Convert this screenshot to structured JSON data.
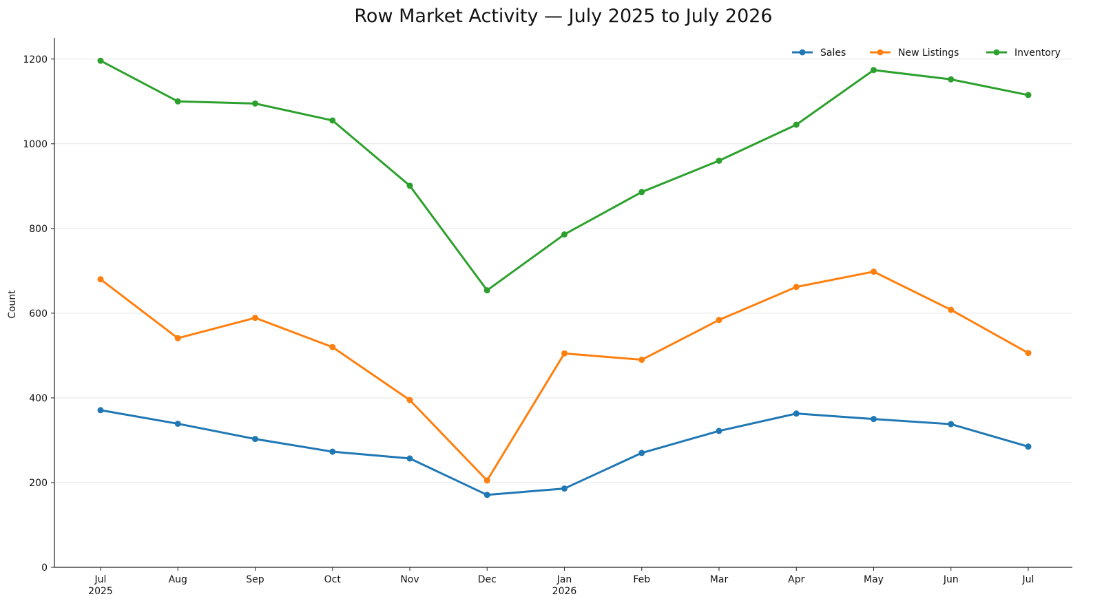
{
  "chart_data": {
    "type": "line",
    "title": "Row Market Activity — July 2025 to July 2026",
    "xlabel": "",
    "ylabel": "Count",
    "ylim": [
      0,
      1250
    ],
    "yticks": [
      0,
      200,
      400,
      600,
      800,
      1000,
      1200
    ],
    "grid": "horizontal",
    "legend_position": "top-right",
    "categories": [
      "Jul",
      "Aug",
      "Sep",
      "Oct",
      "Nov",
      "Dec",
      "Jan",
      "Feb",
      "Mar",
      "Apr",
      "May",
      "Jun",
      "Jul"
    ],
    "category_sublabels": [
      "2025",
      "",
      "",
      "",
      "",
      "",
      "2026",
      "",
      "",
      "",
      "",
      "",
      ""
    ],
    "series": [
      {
        "name": "Sales",
        "color": "#1f77b4",
        "values": [
          371,
          339,
          303,
          273,
          257,
          171,
          186,
          270,
          322,
          363,
          350,
          338,
          285
        ]
      },
      {
        "name": "New Listings",
        "color": "#ff7f0e",
        "values": [
          680,
          541,
          589,
          520,
          395,
          205,
          505,
          490,
          584,
          662,
          698,
          608,
          506
        ]
      },
      {
        "name": "Inventory",
        "color": "#2ca02c",
        "values": [
          1196,
          1100,
          1095,
          1055,
          901,
          654,
          786,
          886,
          960,
          1045,
          1174,
          1152,
          1115
        ]
      }
    ]
  }
}
